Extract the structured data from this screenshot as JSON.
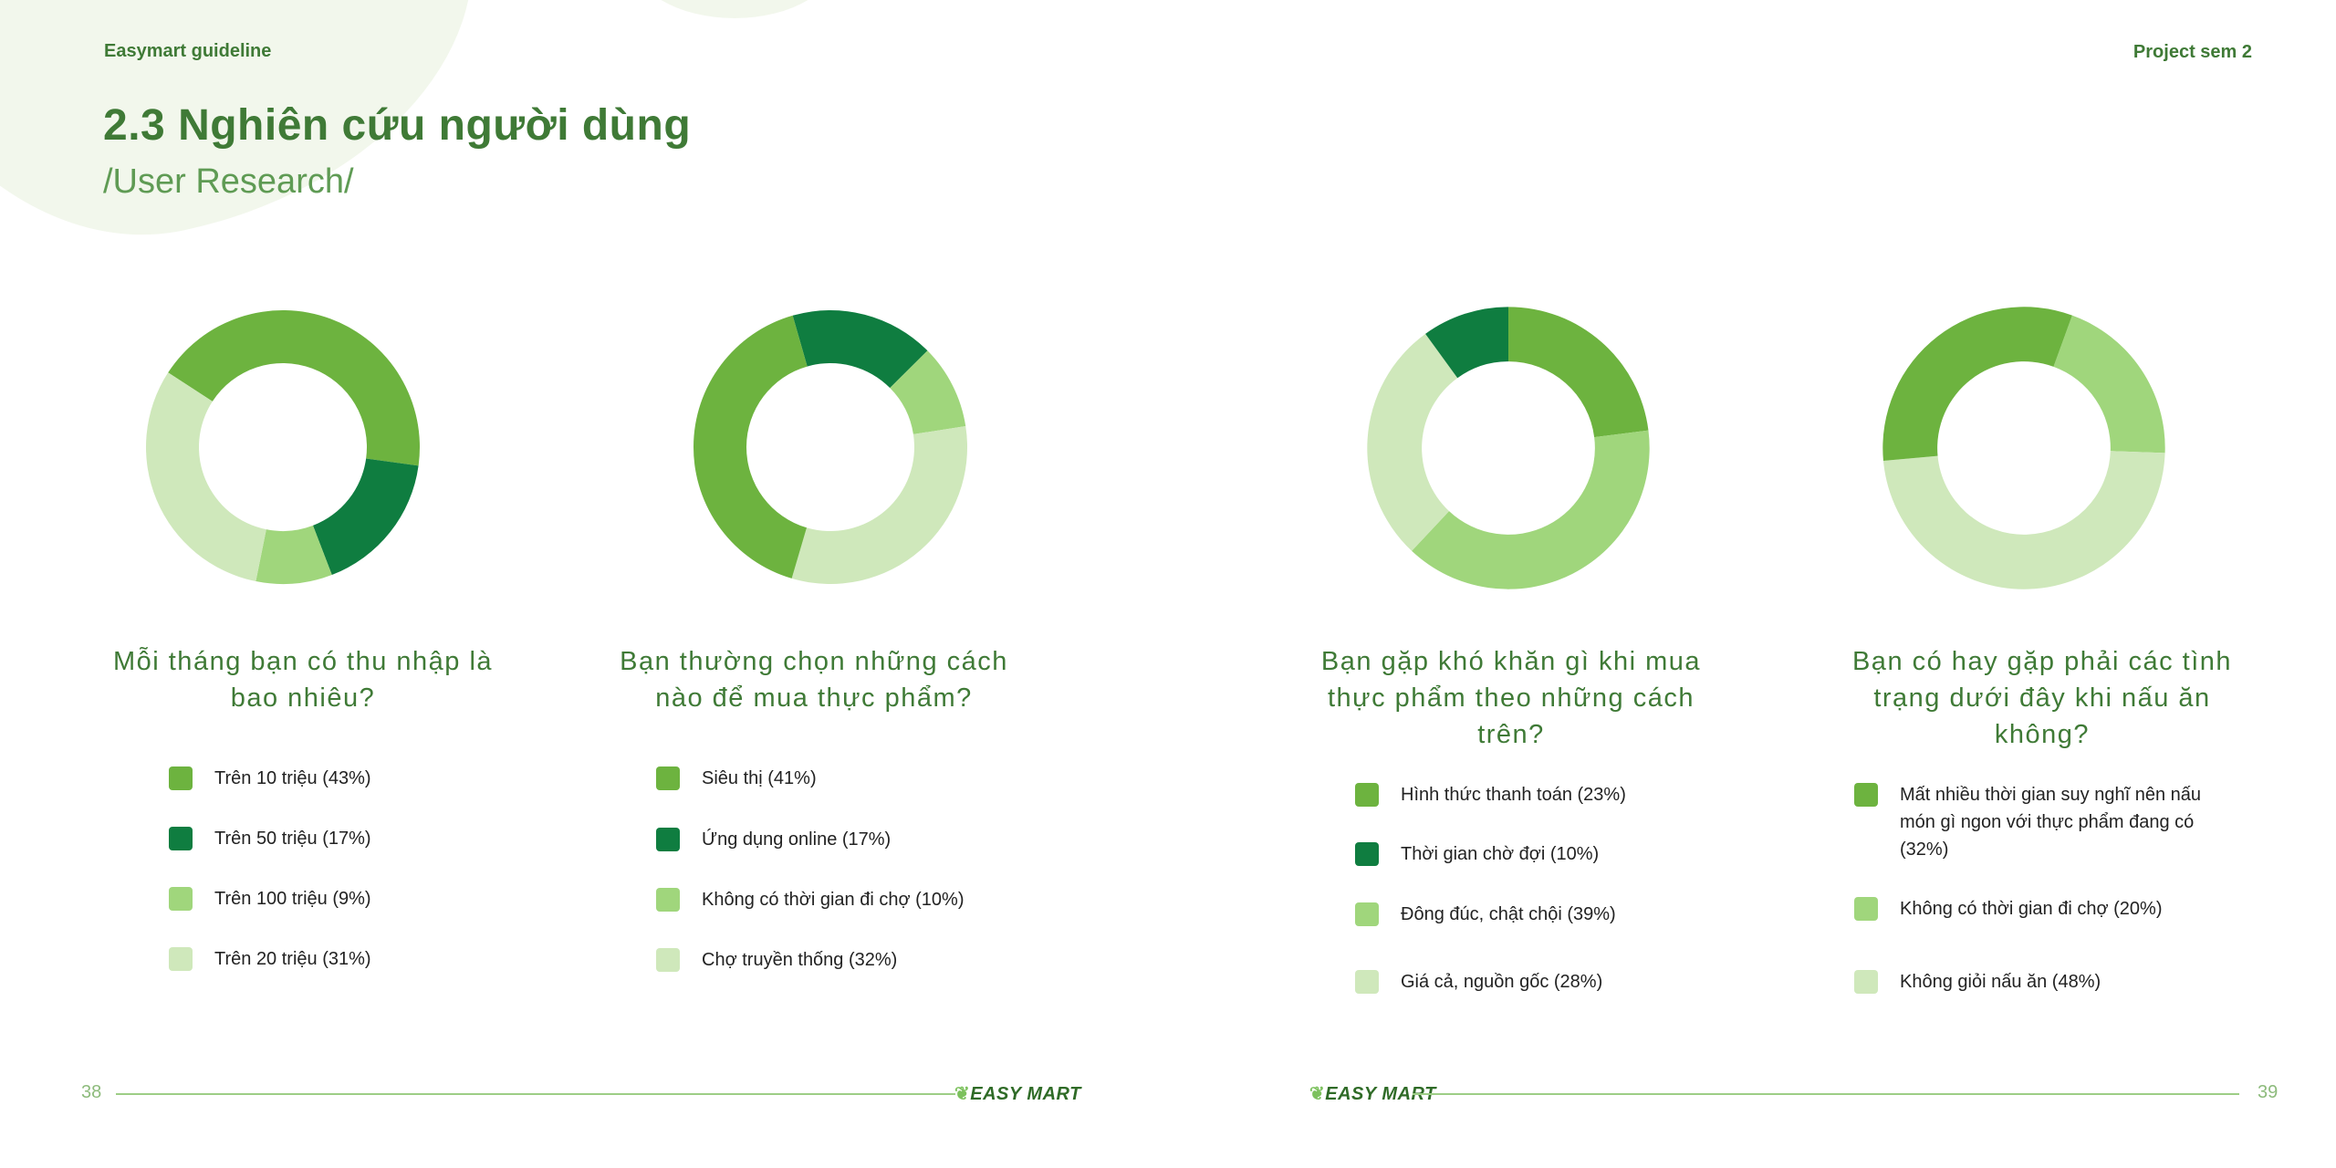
{
  "header": {
    "left": "Easymart guideline",
    "right": "Project sem 2"
  },
  "title": "2.3 Nghiên cứu người dùng",
  "subtitle": "/User Research/",
  "colors": {
    "c1": "#6db33f",
    "c2": "#0f7d40",
    "c3": "#a0d67c",
    "c4": "#cfe8bb",
    "accent": "#3f7a36"
  },
  "panels": [
    {
      "question": "Mỗi tháng bạn có thu nhập là bao nhiêu?",
      "legend": [
        "Trên 10 triệu (43%)",
        "Trên 50 triệu (17%)",
        "Trên 100 triệu (9%)",
        "Trên 20 triệu (31%)"
      ]
    },
    {
      "question": "Bạn thường chọn những cách nào để mua thực phẩm?",
      "legend": [
        "Siêu thị (41%)",
        "Ứng dụng online (17%)",
        "Không có thời gian đi chợ (10%)",
        "Chợ truyền thống (32%)"
      ]
    },
    {
      "question": "Bạn gặp khó khăn gì khi mua thực phẩm theo những  cách trên?",
      "legend": [
        "Hình thức thanh toán (23%)",
        "Thời gian chờ đợi (10%)",
        "Đông đúc, chật chội (39%)",
        "Giá cả, nguồn gốc (28%)"
      ]
    },
    {
      "question": "Bạn có hay gặp phải các tình trạng dưới đây khi nấu ăn không?",
      "legend": [
        "Mất nhiều thời gian suy nghĩ nên nấu món gì ngon với thực phẩm đang có (32%)",
        "Không có thời gian đi chợ (20%)",
        "Không giỏi nấu ăn (48%)"
      ]
    }
  ],
  "chart_data": [
    {
      "type": "pie",
      "categories": [
        "Trên 10 triệu",
        "Trên 50 triệu",
        "Trên 100 triệu",
        "Trên 20 triệu"
      ],
      "values": [
        43,
        17,
        9,
        31
      ]
    },
    {
      "type": "pie",
      "categories": [
        "Siêu thị",
        "Ứng dụng online",
        "Không có thời gian đi chợ",
        "Chợ truyền thống"
      ],
      "values": [
        41,
        17,
        10,
        32
      ]
    },
    {
      "type": "pie",
      "categories": [
        "Hình thức thanh toán",
        "Thời gian chờ đợi",
        "Đông đúc, chật chội",
        "Giá cả, nguồn gốc"
      ],
      "values": [
        23,
        10,
        39,
        28
      ]
    },
    {
      "type": "pie",
      "categories": [
        "Mất nhiều thời gian suy nghĩ nên nấu món gì ngon với thực phẩm đang có",
        "Không có thời gian đi chợ",
        "Không giỏi nấu ăn"
      ],
      "values": [
        32,
        20,
        48
      ]
    }
  ],
  "footer": {
    "page_left": "38",
    "page_right": "39",
    "logo_text": "EASY MART"
  }
}
